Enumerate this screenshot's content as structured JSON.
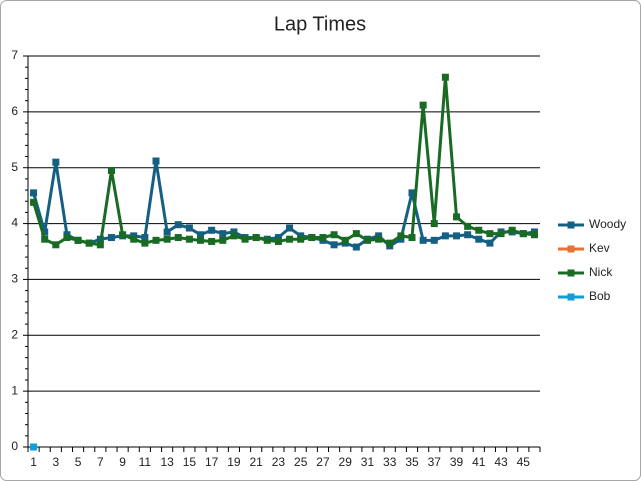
{
  "chart_data": {
    "type": "line",
    "title": "Lap Times",
    "categories": [
      1,
      null,
      3,
      null,
      5,
      null,
      7,
      null,
      9,
      null,
      11,
      null,
      13,
      null,
      15,
      null,
      17,
      null,
      19,
      null,
      21,
      null,
      23,
      null,
      25,
      null,
      27,
      null,
      29,
      null,
      31,
      null,
      33,
      null,
      35,
      null,
      37,
      null,
      39,
      null,
      41,
      null,
      43,
      null,
      45,
      null
    ],
    "ylim": [
      0,
      7
    ],
    "yticks": [
      0,
      1,
      2,
      3,
      4,
      5,
      6,
      7
    ],
    "grid": true,
    "legend": "right",
    "series": [
      {
        "name": "Woody",
        "color": "#156082",
        "values": [
          4.55,
          3.85,
          5.1,
          3.8,
          3.7,
          3.65,
          3.72,
          3.75,
          3.78,
          3.78,
          3.75,
          5.12,
          3.85,
          3.98,
          3.92,
          3.8,
          3.88,
          3.82,
          3.85,
          3.75,
          3.75,
          3.72,
          3.75,
          3.92,
          3.78,
          3.75,
          3.7,
          3.62,
          3.65,
          3.58,
          3.72,
          3.78,
          3.6,
          3.72,
          4.55,
          3.7,
          3.7,
          3.78,
          3.78,
          3.8,
          3.72,
          3.65,
          3.85,
          3.85,
          3.82,
          3.85
        ]
      },
      {
        "name": "Kev",
        "color": "#e97132",
        "values": [
          null,
          null,
          null,
          null,
          null,
          null,
          null,
          null,
          null,
          null,
          null,
          null,
          null,
          null,
          null,
          null,
          null,
          null,
          null,
          null,
          null,
          null,
          null,
          null,
          null,
          null,
          null,
          null,
          null,
          null,
          null,
          null,
          null,
          null,
          null,
          null,
          null,
          null,
          null,
          null,
          null,
          null,
          null,
          null,
          null,
          null
        ]
      },
      {
        "name": "Nick",
        "color": "#196b24",
        "values": [
          4.38,
          3.72,
          3.62,
          3.75,
          3.7,
          3.65,
          3.62,
          4.95,
          3.8,
          3.72,
          3.65,
          3.7,
          3.72,
          3.75,
          3.72,
          3.7,
          3.68,
          3.7,
          3.78,
          3.72,
          3.75,
          3.7,
          3.68,
          3.72,
          3.72,
          3.75,
          3.75,
          3.8,
          3.7,
          3.82,
          3.7,
          3.72,
          3.65,
          3.78,
          3.75,
          6.12,
          4.0,
          6.62,
          4.12,
          3.95,
          3.88,
          3.82,
          3.82,
          3.88,
          3.82,
          3.8
        ]
      },
      {
        "name": "Bob",
        "color": "#0f9ed5",
        "values": [
          0,
          null,
          null,
          null,
          null,
          null,
          null,
          null,
          null,
          null,
          null,
          null,
          null,
          null,
          null,
          null,
          null,
          null,
          null,
          null,
          null,
          null,
          null,
          null,
          null,
          null,
          null,
          null,
          null,
          null,
          null,
          null,
          null,
          null,
          null,
          null,
          null,
          null,
          null,
          null,
          null,
          null,
          null,
          null,
          null,
          null
        ]
      }
    ]
  }
}
